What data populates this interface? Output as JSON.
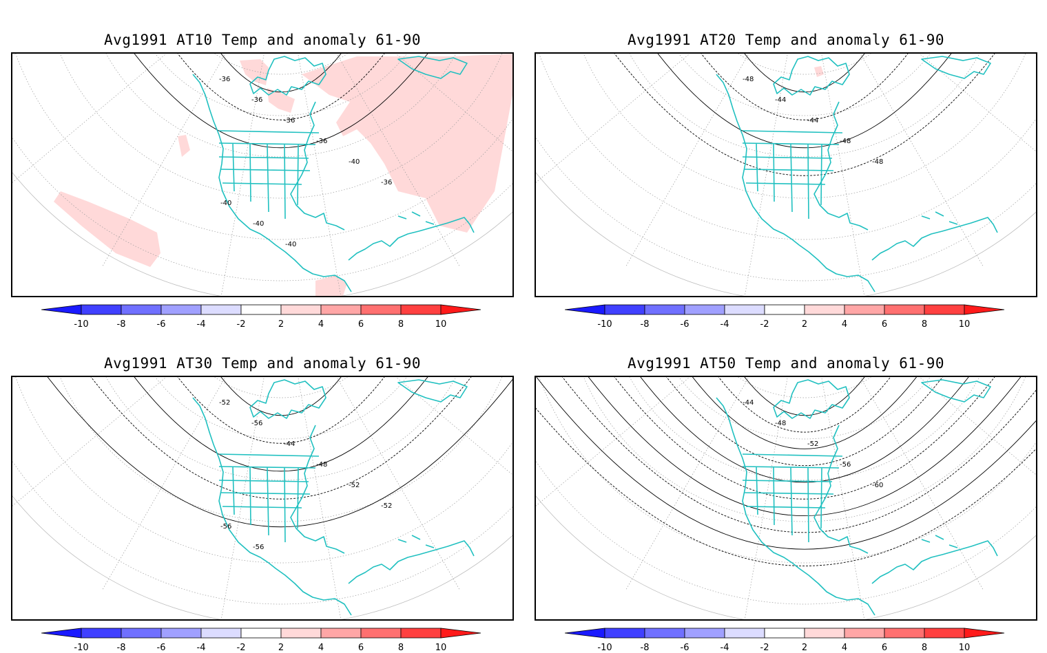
{
  "panels": [
    {
      "title": "Avg1991 AT10 Temp and anomaly 61-90",
      "contour_labels": [
        "-36",
        "-36",
        "-36",
        "-36",
        "-40",
        "-36",
        "-40",
        "-40",
        "-40"
      ],
      "anomaly_shading": "positive-2-4"
    },
    {
      "title": "Avg1991 AT20 Temp and anomaly 61-90",
      "contour_labels": [
        "-48",
        "-44",
        "-44",
        "-48",
        "-48"
      ],
      "anomaly_shading": "small"
    },
    {
      "title": "Avg1991 AT30 Temp and anomaly 61-90",
      "contour_labels": [
        "-52",
        "-56",
        "-44",
        "-48",
        "-52",
        "-52",
        "-56",
        "-56"
      ],
      "anomaly_shading": "none"
    },
    {
      "title": "Avg1991 AT50 Temp and anomaly 61-90",
      "contour_labels": [
        "-44",
        "-48",
        "-52",
        "-56",
        "-60"
      ],
      "anomaly_shading": "none"
    }
  ],
  "colorbar": {
    "labels": [
      "-10",
      "-8",
      "-6",
      "-4",
      "-2",
      "2",
      "4",
      "6",
      "8",
      "10"
    ],
    "colors": [
      "#1a1aff",
      "#4040ff",
      "#7070ff",
      "#a0a0ff",
      "#dcdcff",
      "#ffffff",
      "#ffd9d9",
      "#ffa6a6",
      "#ff7070",
      "#ff4040",
      "#ff1a1a"
    ]
  },
  "colors": {
    "coastline": "#20c0c0",
    "anomaly_positive_light": "#ffd9d9",
    "contour": "#000000",
    "graticule": "#9a9a9a"
  }
}
